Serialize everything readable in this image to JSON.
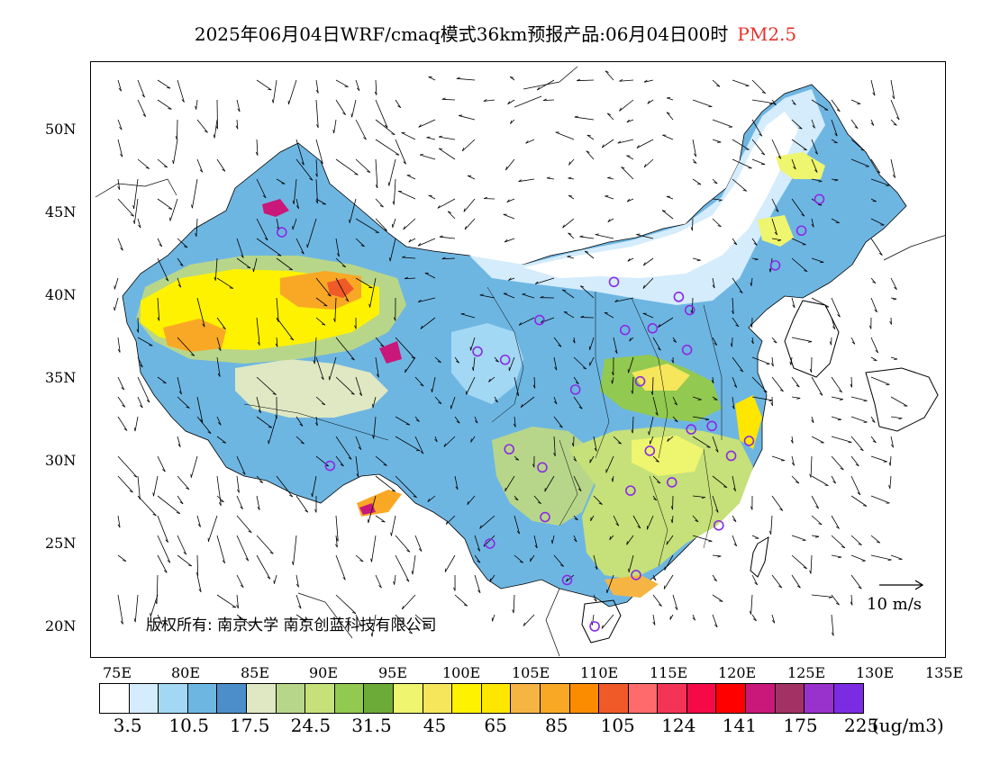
{
  "title": {
    "main": "2025年06月04日WRF/cmaq模式36km预报产品:06月04日00时",
    "species": "PM2.5"
  },
  "map": {
    "lat_labels": [
      "50N",
      "45N",
      "40N",
      "35N",
      "30N",
      "25N",
      "20N"
    ],
    "lon_labels": [
      "75E",
      "80E",
      "85E",
      "90E",
      "95E",
      "100E",
      "105E",
      "110E",
      "115E",
      "120E",
      "125E",
      "130E",
      "135E"
    ],
    "copyright": "版权所有: 南京大学 南京创蓝科技有限公司",
    "wind_reference": "10 m/s"
  },
  "colorbar": {
    "colors": [
      "#ffffff",
      "#d4ecfb",
      "#a3d8f4",
      "#6eb6e2",
      "#4b8ec9",
      "#dfe8c3",
      "#b8d68a",
      "#c6e07a",
      "#92c950",
      "#6cab38",
      "#eef56e",
      "#f5e65c",
      "#fff200",
      "#fde700",
      "#f6b542",
      "#f9a825",
      "#fb8c00",
      "#f05a28",
      "#ff6b6b",
      "#f43456",
      "#f50a47",
      "#ff0000",
      "#c9187a",
      "#a33264",
      "#9932cc",
      "#7b2be2"
    ],
    "labels": [
      "3.5",
      "10.5",
      "17.5",
      "24.5",
      "31.5",
      "45",
      "65",
      "85",
      "105",
      "124",
      "141",
      "175",
      "225"
    ],
    "unit": "(ug/m3)"
  },
  "stations": [
    {
      "lon": 87.6,
      "lat": 43.8
    },
    {
      "lon": 91.1,
      "lat": 29.7
    },
    {
      "lon": 101.8,
      "lat": 36.6
    },
    {
      "lon": 103.8,
      "lat": 36.1
    },
    {
      "lon": 106.3,
      "lat": 38.5
    },
    {
      "lon": 111.7,
      "lat": 40.8
    },
    {
      "lon": 116.4,
      "lat": 39.9
    },
    {
      "lon": 117.2,
      "lat": 39.1
    },
    {
      "lon": 114.5,
      "lat": 38.0
    },
    {
      "lon": 112.5,
      "lat": 37.9
    },
    {
      "lon": 117.0,
      "lat": 36.7
    },
    {
      "lon": 113.6,
      "lat": 34.8
    },
    {
      "lon": 108.9,
      "lat": 34.3
    },
    {
      "lon": 104.1,
      "lat": 30.7
    },
    {
      "lon": 106.5,
      "lat": 29.6
    },
    {
      "lon": 106.7,
      "lat": 26.6
    },
    {
      "lon": 102.7,
      "lat": 25.0
    },
    {
      "lon": 108.3,
      "lat": 22.8
    },
    {
      "lon": 113.3,
      "lat": 23.1
    },
    {
      "lon": 110.3,
      "lat": 20.0
    },
    {
      "lon": 119.3,
      "lat": 26.1
    },
    {
      "lon": 115.9,
      "lat": 28.7
    },
    {
      "lon": 112.9,
      "lat": 28.2
    },
    {
      "lon": 114.3,
      "lat": 30.6
    },
    {
      "lon": 117.3,
      "lat": 31.9
    },
    {
      "lon": 118.8,
      "lat": 32.1
    },
    {
      "lon": 120.2,
      "lat": 30.3
    },
    {
      "lon": 121.5,
      "lat": 31.2
    },
    {
      "lon": 123.4,
      "lat": 41.8
    },
    {
      "lon": 125.3,
      "lat": 43.9
    },
    {
      "lon": 126.6,
      "lat": 45.8
    }
  ]
}
